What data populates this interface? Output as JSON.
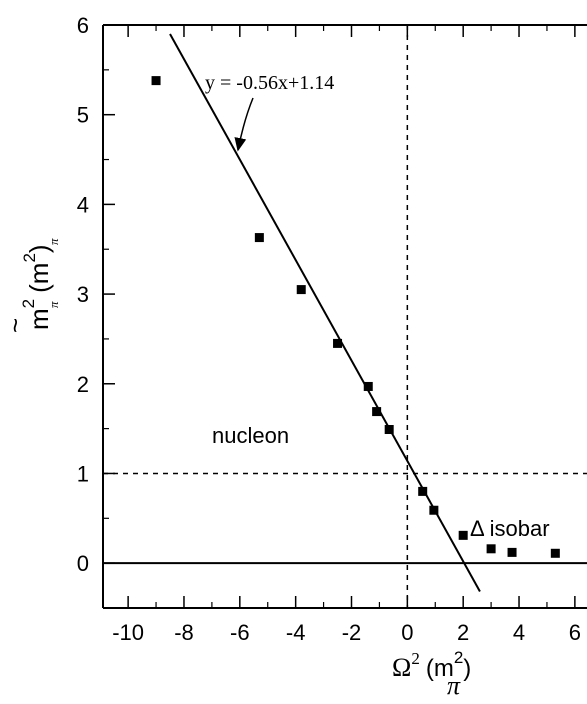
{
  "chart_data": {
    "type": "scatter",
    "title": "",
    "xlabel": {
      "base": "Ω",
      "base_sup": "2",
      "unit_open": "(m",
      "unit_sup": "2",
      "unit_sub": "π",
      "unit_close": ")"
    },
    "ylabel": {
      "tilde": "~",
      "base": "m",
      "base_sup": "2",
      "base_sub": "π",
      "unit_open": "(m",
      "unit_sup": "2",
      "unit_sub": "π",
      "unit_close": ")"
    },
    "xlim": [
      -10.9,
      6.9
    ],
    "ylim": [
      -0.5,
      6.0
    ],
    "xticks": [
      -10,
      -8,
      -6,
      -4,
      -2,
      0,
      2,
      4,
      6
    ],
    "xtick_labels": [
      "-10",
      "-8",
      "-6",
      "-4",
      "-2",
      "0",
      "2",
      "4",
      "6"
    ],
    "yticks": [
      0,
      1,
      2,
      3,
      4,
      5,
      6
    ],
    "ytick_labels": [
      "0",
      "1",
      "2",
      "3",
      "4",
      "5",
      "6"
    ],
    "points": [
      {
        "x": -9.0,
        "y": 5.38
      },
      {
        "x": -5.3,
        "y": 3.63
      },
      {
        "x": -3.8,
        "y": 3.05
      },
      {
        "x": -2.5,
        "y": 2.45
      },
      {
        "x": -1.4,
        "y": 1.97
      },
      {
        "x": -1.1,
        "y": 1.69
      },
      {
        "x": -0.65,
        "y": 1.49
      },
      {
        "x": 0.55,
        "y": 0.8
      },
      {
        "x": 0.95,
        "y": 0.59
      },
      {
        "x": 2.0,
        "y": 0.31
      },
      {
        "x": 3.0,
        "y": 0.16
      },
      {
        "x": 3.75,
        "y": 0.12
      },
      {
        "x": 5.3,
        "y": 0.11
      }
    ],
    "fit_line": {
      "label": "y = -0.56x+1.14",
      "slope": -0.56,
      "intercept": 1.14,
      "x_range": [
        -8.5,
        2.6
      ]
    },
    "reference_lines": [
      {
        "orientation": "vertical",
        "value": 0,
        "style": "dashed"
      },
      {
        "orientation": "horizontal",
        "value": 1,
        "style": "dashed"
      },
      {
        "orientation": "horizontal",
        "value": 0,
        "style": "solid"
      }
    ],
    "annotations": [
      {
        "name": "nucleon-label",
        "text": "nucleon"
      },
      {
        "name": "delta-isobar-label",
        "text": "Δ isobar"
      }
    ]
  }
}
